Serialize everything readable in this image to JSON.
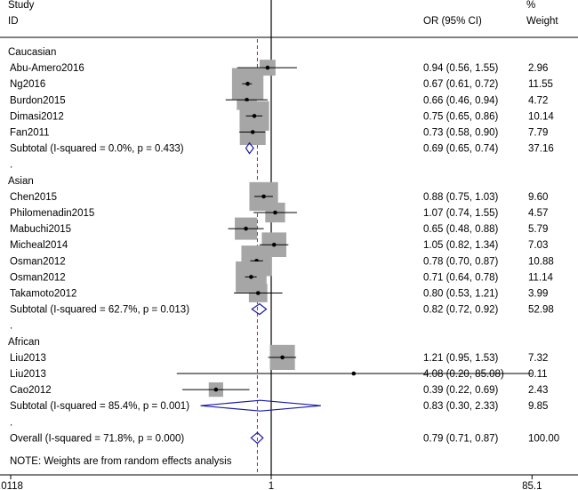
{
  "header": {
    "study_line1": "Study",
    "study_line2": "ID",
    "or_label": "OR (95% CI)",
    "weight_line1": "%",
    "weight_line2": "Weight"
  },
  "footnote": "NOTE: Weights are from random effects analysis",
  "chart_data": {
    "type": "forest",
    "title": "",
    "xlabel": "",
    "ylabel": "",
    "x_scale": "log",
    "x_ticks": [
      ".0118",
      "1",
      "85.1"
    ],
    "xlim": [
      0.0118,
      85.1
    ],
    "null_line": 1,
    "pooled_line": 0.79,
    "rows": [
      {
        "kind": "group",
        "label": "Caucasian"
      },
      {
        "kind": "study",
        "label": "Abu-Amero2016",
        "or": 0.94,
        "lo": 0.56,
        "hi": 1.55,
        "text": "0.94 (0.56, 1.55)",
        "weight": "2.96"
      },
      {
        "kind": "study",
        "label": "Ng2016",
        "or": 0.67,
        "lo": 0.61,
        "hi": 0.72,
        "text": "0.67 (0.61, 0.72)",
        "weight": "11.55"
      },
      {
        "kind": "study",
        "label": "Burdon2015",
        "or": 0.66,
        "lo": 0.46,
        "hi": 0.94,
        "text": "0.66 (0.46, 0.94)",
        "weight": "4.72"
      },
      {
        "kind": "study",
        "label": "Dimasi2012",
        "or": 0.75,
        "lo": 0.65,
        "hi": 0.86,
        "text": "0.75 (0.65, 0.86)",
        "weight": "10.14"
      },
      {
        "kind": "study",
        "label": "Fan2011",
        "or": 0.73,
        "lo": 0.58,
        "hi": 0.9,
        "text": "0.73 (0.58, 0.90)",
        "weight": "7.79"
      },
      {
        "kind": "subtotal",
        "label": "Subtotal  (I-squared = 0.0%, p = 0.433)",
        "or": 0.69,
        "lo": 0.65,
        "hi": 0.74,
        "text": "0.69 (0.65, 0.74)",
        "weight": "37.16"
      },
      {
        "kind": "dot",
        "label": "."
      },
      {
        "kind": "group",
        "label": "Asian"
      },
      {
        "kind": "study",
        "label": "Chen2015",
        "or": 0.88,
        "lo": 0.75,
        "hi": 1.03,
        "text": "0.88 (0.75, 1.03)",
        "weight": "9.60"
      },
      {
        "kind": "study",
        "label": "Philomenadin2015",
        "or": 1.07,
        "lo": 0.74,
        "hi": 1.55,
        "text": "1.07 (0.74, 1.55)",
        "weight": "4.57"
      },
      {
        "kind": "study",
        "label": "Mabuchi2015",
        "or": 0.65,
        "lo": 0.48,
        "hi": 0.88,
        "text": "0.65 (0.48, 0.88)",
        "weight": "5.79"
      },
      {
        "kind": "study",
        "label": "Micheal2014",
        "or": 1.05,
        "lo": 0.82,
        "hi": 1.34,
        "text": "1.05 (0.82, 1.34)",
        "weight": "7.03"
      },
      {
        "kind": "study",
        "label": "Osman2012",
        "or": 0.78,
        "lo": 0.7,
        "hi": 0.87,
        "text": "0.78 (0.70, 0.87)",
        "weight": "10.88"
      },
      {
        "kind": "study",
        "label": "Osman2012",
        "or": 0.71,
        "lo": 0.64,
        "hi": 0.78,
        "text": "0.71 (0.64, 0.78)",
        "weight": "11.14"
      },
      {
        "kind": "study",
        "label": "Takamoto2012",
        "or": 0.8,
        "lo": 0.53,
        "hi": 1.21,
        "text": "0.80 (0.53, 1.21)",
        "weight": "3.99"
      },
      {
        "kind": "subtotal",
        "label": "Subtotal  (I-squared = 62.7%, p = 0.013)",
        "or": 0.82,
        "lo": 0.72,
        "hi": 0.92,
        "text": "0.82 (0.72, 0.92)",
        "weight": "52.98"
      },
      {
        "kind": "dot",
        "label": "."
      },
      {
        "kind": "group",
        "label": "African"
      },
      {
        "kind": "study",
        "label": "Liu2013",
        "or": 1.21,
        "lo": 0.95,
        "hi": 1.53,
        "text": "1.21 (0.95, 1.53)",
        "weight": "7.32"
      },
      {
        "kind": "study",
        "label": "Liu2013",
        "or": 4.08,
        "lo": 0.2,
        "hi": 85.08,
        "text": "4.08 (0.20, 85.08)",
        "weight": "0.11"
      },
      {
        "kind": "study",
        "label": "Cao2012",
        "or": 0.39,
        "lo": 0.22,
        "hi": 0.69,
        "text": "0.39 (0.22, 0.69)",
        "weight": "2.43"
      },
      {
        "kind": "subtotal",
        "label": "Subtotal  (I-squared = 85.4%, p = 0.001)",
        "or": 0.83,
        "lo": 0.3,
        "hi": 2.33,
        "text": "0.83 (0.30, 2.33)",
        "weight": "9.85"
      },
      {
        "kind": "dot",
        "label": "."
      },
      {
        "kind": "overall",
        "label": "Overall  (I-squared = 71.8%, p = 0.000)",
        "or": 0.79,
        "lo": 0.71,
        "hi": 0.87,
        "text": "0.79 (0.71, 0.87)",
        "weight": "100.00"
      }
    ],
    "colors": {
      "box": "#a6a6a6",
      "point": "#000000",
      "diamond": "#1a1aa8",
      "pooled_line": "#c0202a",
      "axis": "#000000"
    }
  }
}
